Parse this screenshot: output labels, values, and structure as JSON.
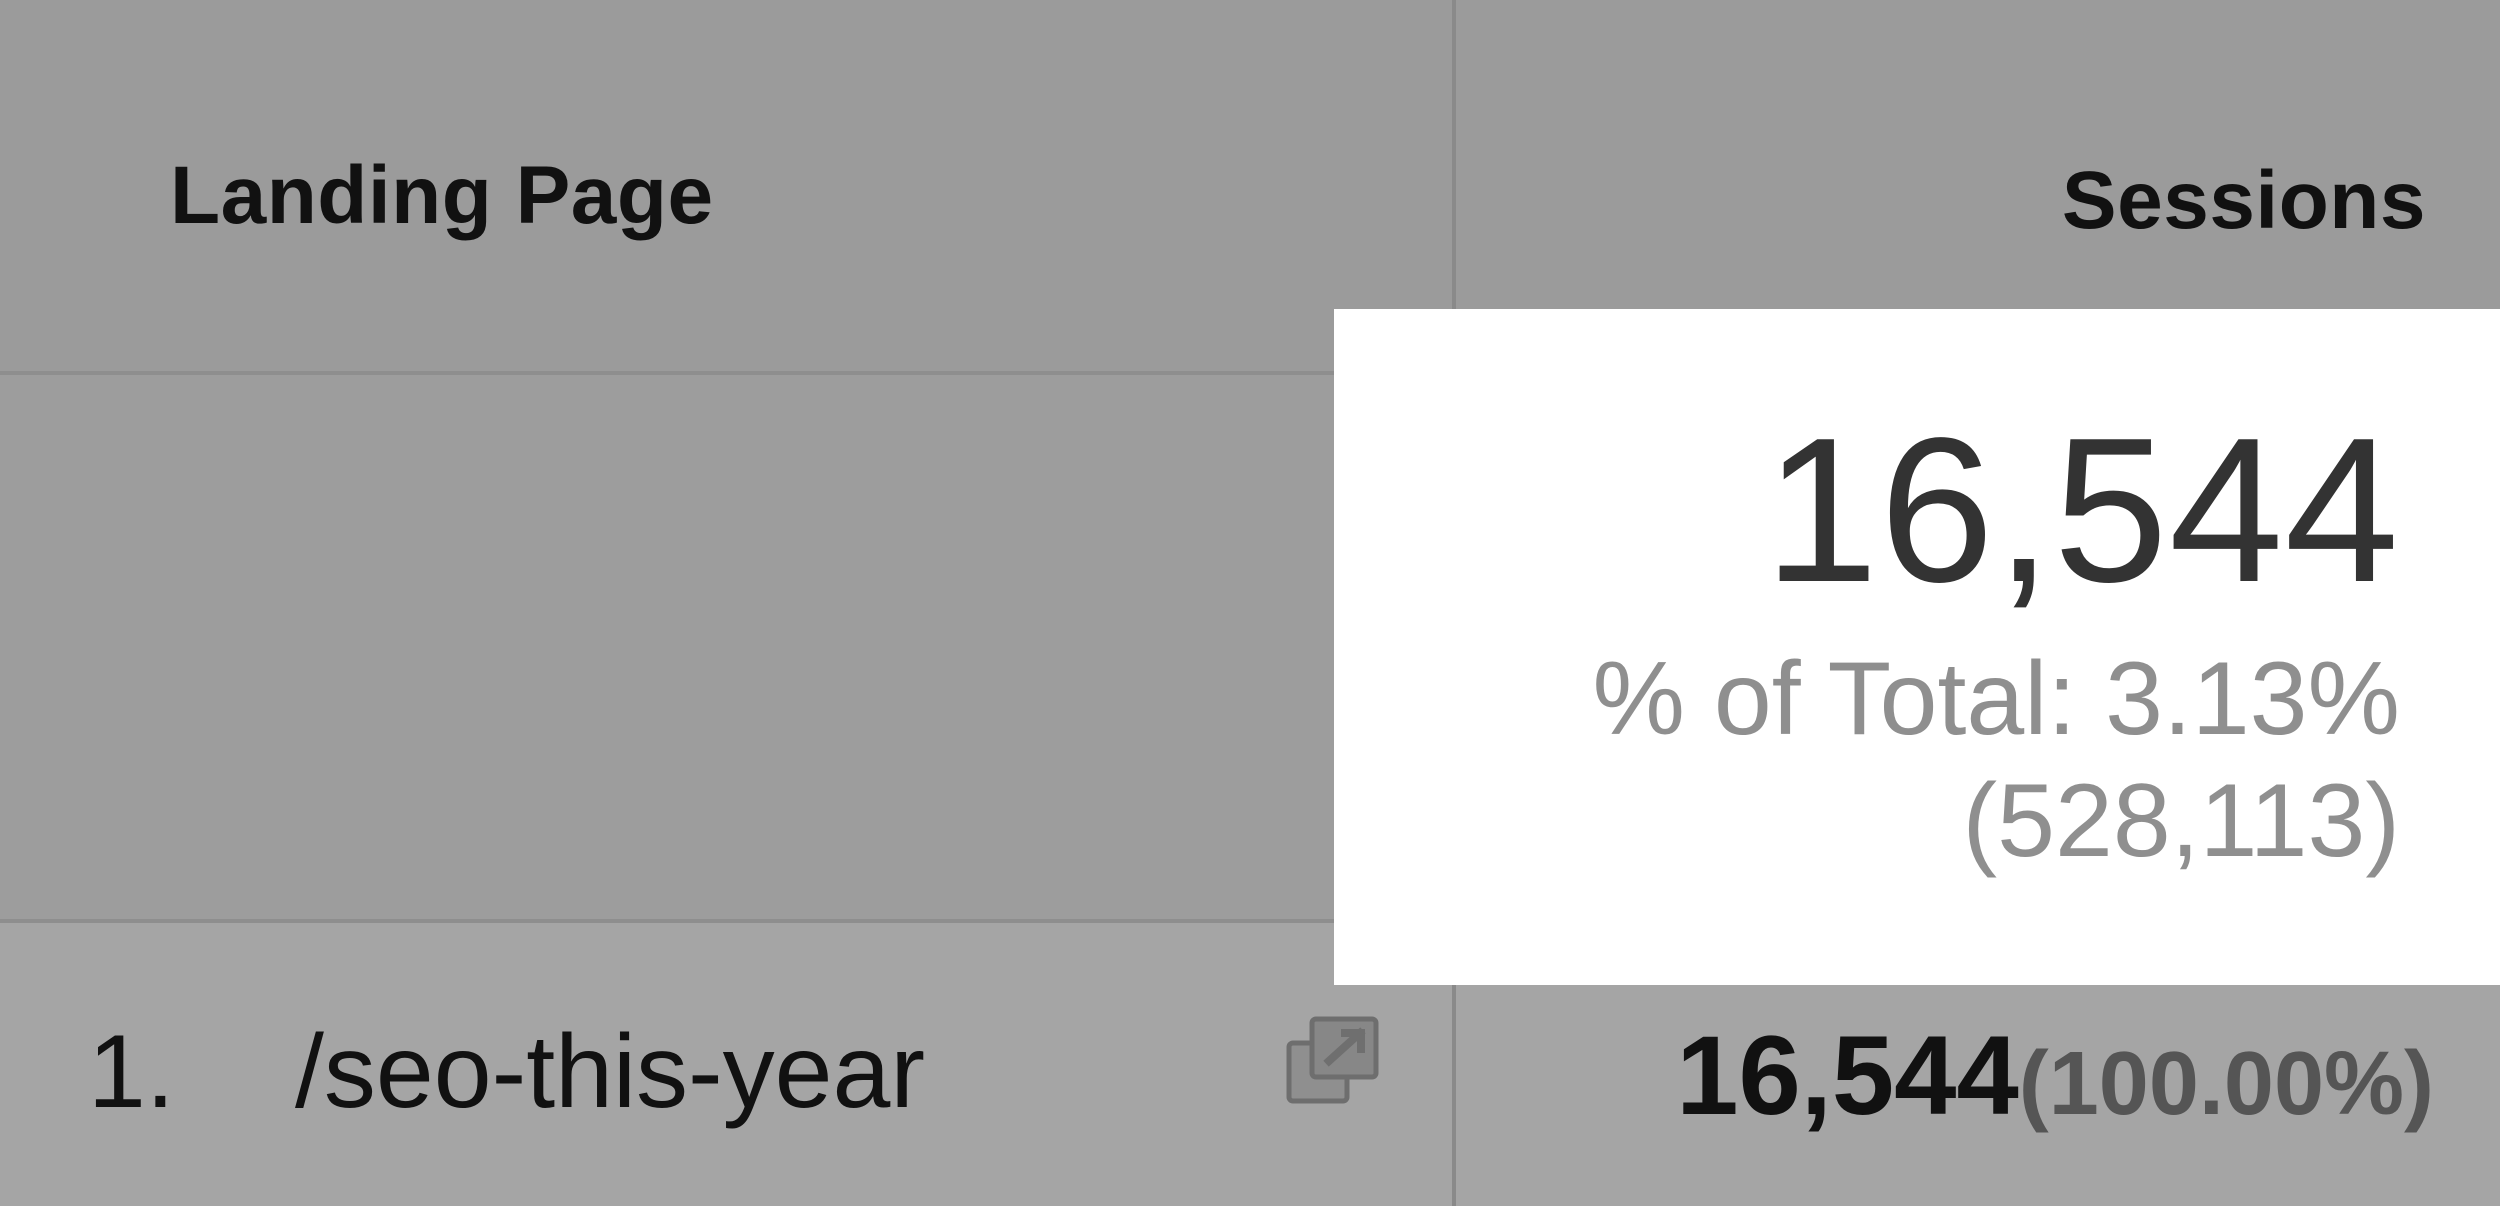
{
  "table": {
    "columns": {
      "landing_page": "Landing Page",
      "sessions": "Sessions"
    },
    "summary": {
      "value": "16,544",
      "percent_of_total": "% of Total: 3.13%",
      "total": "(528,113)"
    },
    "rows": [
      {
        "index": "1.",
        "page": "/seo-this-year",
        "sessions": "16,544",
        "sessions_percent": "(100.00%)",
        "icon": "open-in-new-icon"
      }
    ]
  },
  "colors": {
    "background": "#9b9b9b",
    "summary_card": "#ffffff",
    "primary_text": "#111111",
    "muted_text": "#8f8f8f"
  }
}
